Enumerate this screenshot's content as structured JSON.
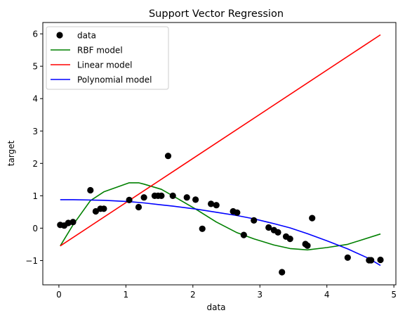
{
  "chart_data": {
    "type": "scatter",
    "title": "Support Vector Regression",
    "xlabel": "data",
    "ylabel": "target",
    "xlim": [
      -0.24,
      5.03
    ],
    "ylim": [
      -1.75,
      6.35
    ],
    "xticks": [
      0,
      1,
      2,
      3,
      4,
      5
    ],
    "yticks": [
      -1,
      0,
      1,
      2,
      3,
      4,
      5,
      6
    ],
    "grid": false,
    "legend_position": "top-left",
    "scatter": {
      "name": "data",
      "color": "#000000",
      "points": [
        [
          0.02,
          0.1
        ],
        [
          0.08,
          0.08
        ],
        [
          0.14,
          0.16
        ],
        [
          0.21,
          0.19
        ],
        [
          0.47,
          1.17
        ],
        [
          0.55,
          0.52
        ],
        [
          0.62,
          0.6
        ],
        [
          0.67,
          0.6
        ],
        [
          1.05,
          0.87
        ],
        [
          1.19,
          0.65
        ],
        [
          1.27,
          0.95
        ],
        [
          1.43,
          1.0
        ],
        [
          1.48,
          1.0
        ],
        [
          1.53,
          1.0
        ],
        [
          1.63,
          2.23
        ],
        [
          1.7,
          1.0
        ],
        [
          1.91,
          0.95
        ],
        [
          2.04,
          0.88
        ],
        [
          2.14,
          -0.02
        ],
        [
          2.27,
          0.75
        ],
        [
          2.35,
          0.71
        ],
        [
          2.6,
          0.52
        ],
        [
          2.66,
          0.48
        ],
        [
          2.76,
          -0.21
        ],
        [
          2.91,
          0.24
        ],
        [
          3.13,
          0.02
        ],
        [
          3.21,
          -0.06
        ],
        [
          3.27,
          -0.13
        ],
        [
          3.33,
          -1.36
        ],
        [
          3.39,
          -0.26
        ],
        [
          3.45,
          -0.33
        ],
        [
          3.68,
          -0.49
        ],
        [
          3.71,
          -0.54
        ],
        [
          3.78,
          0.31
        ],
        [
          4.31,
          -0.91
        ],
        [
          4.63,
          -0.99
        ],
        [
          4.66,
          -0.99
        ],
        [
          4.8,
          -0.98
        ]
      ]
    },
    "series": [
      {
        "name": "RBF model",
        "color": "#008000",
        "x": [
          0.02,
          0.21,
          0.47,
          0.67,
          1.05,
          1.19,
          1.27,
          1.53,
          1.7,
          2.04,
          2.35,
          2.66,
          2.91,
          3.21,
          3.45,
          3.71,
          4.0,
          4.31,
          4.8
        ],
        "y": [
          -0.55,
          0.1,
          0.85,
          1.12,
          1.4,
          1.4,
          1.36,
          1.2,
          1.0,
          0.59,
          0.19,
          -0.14,
          -0.33,
          -0.52,
          -0.63,
          -0.67,
          -0.6,
          -0.5,
          -0.18
        ]
      },
      {
        "name": "Linear model",
        "color": "#ff0000",
        "x": [
          0.02,
          4.8
        ],
        "y": [
          -0.55,
          5.97
        ]
      },
      {
        "name": "Polynomial model",
        "color": "#0000ff",
        "x": [
          0.02,
          0.21,
          0.47,
          0.67,
          1.05,
          1.27,
          1.53,
          1.7,
          2.04,
          2.35,
          2.66,
          2.91,
          3.21,
          3.45,
          3.71,
          4.0,
          4.31,
          4.63,
          4.8
        ],
        "y": [
          0.88,
          0.88,
          0.87,
          0.86,
          0.82,
          0.78,
          0.72,
          0.68,
          0.59,
          0.49,
          0.39,
          0.29,
          0.14,
          0.01,
          -0.17,
          -0.39,
          -0.64,
          -0.94,
          -1.15
        ]
      }
    ]
  }
}
